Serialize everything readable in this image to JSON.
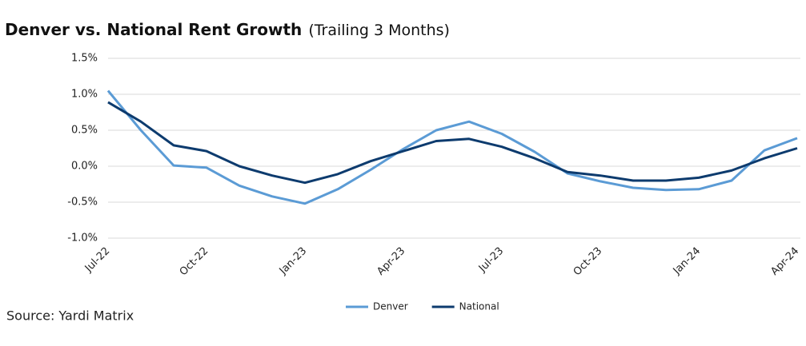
{
  "chart_data": {
    "type": "line",
    "title": "Denver vs. National Rent Growth",
    "subtitle": "(Trailing 3 Months)",
    "source": "Source: Yardi Matrix",
    "categories": [
      "Jul-22",
      null,
      null,
      "Oct-22",
      null,
      null,
      "Jan-23",
      null,
      null,
      "Apr-23",
      null,
      null,
      "Jul-23",
      null,
      null,
      "Oct-23",
      null,
      null,
      "Jan-24",
      null,
      null,
      "Apr-24"
    ],
    "series": [
      {
        "name": "Denver",
        "color": "#5b9bd5",
        "values": [
          1.05,
          0.5,
          0.01,
          -0.02,
          -0.27,
          -0.42,
          -0.52,
          -0.32,
          -0.05,
          0.24,
          0.5,
          0.62,
          0.45,
          0.2,
          -0.1,
          -0.21,
          -0.3,
          -0.33,
          -0.32,
          -0.2,
          0.22,
          0.39
        ]
      },
      {
        "name": "National",
        "color": "#0d3b6e",
        "values": [
          0.89,
          0.62,
          0.29,
          0.21,
          0.0,
          -0.13,
          -0.23,
          -0.11,
          0.07,
          0.21,
          0.35,
          0.38,
          0.27,
          0.11,
          -0.08,
          -0.13,
          -0.2,
          -0.2,
          -0.16,
          -0.06,
          0.11,
          0.25
        ]
      }
    ],
    "ylim": [
      -1.0,
      1.5
    ],
    "yticks": [
      {
        "value": -1.0,
        "label": "-1.0%"
      },
      {
        "value": -0.5,
        "label": "-0.5%"
      },
      {
        "value": 0,
        "label": "0.0%"
      },
      {
        "value": 0.5,
        "label": "0.5%"
      },
      {
        "value": 1.0,
        "label": "1.0%"
      },
      {
        "value": 1.5,
        "label": "1.5%"
      }
    ],
    "grid": true,
    "legend": "bottom"
  }
}
